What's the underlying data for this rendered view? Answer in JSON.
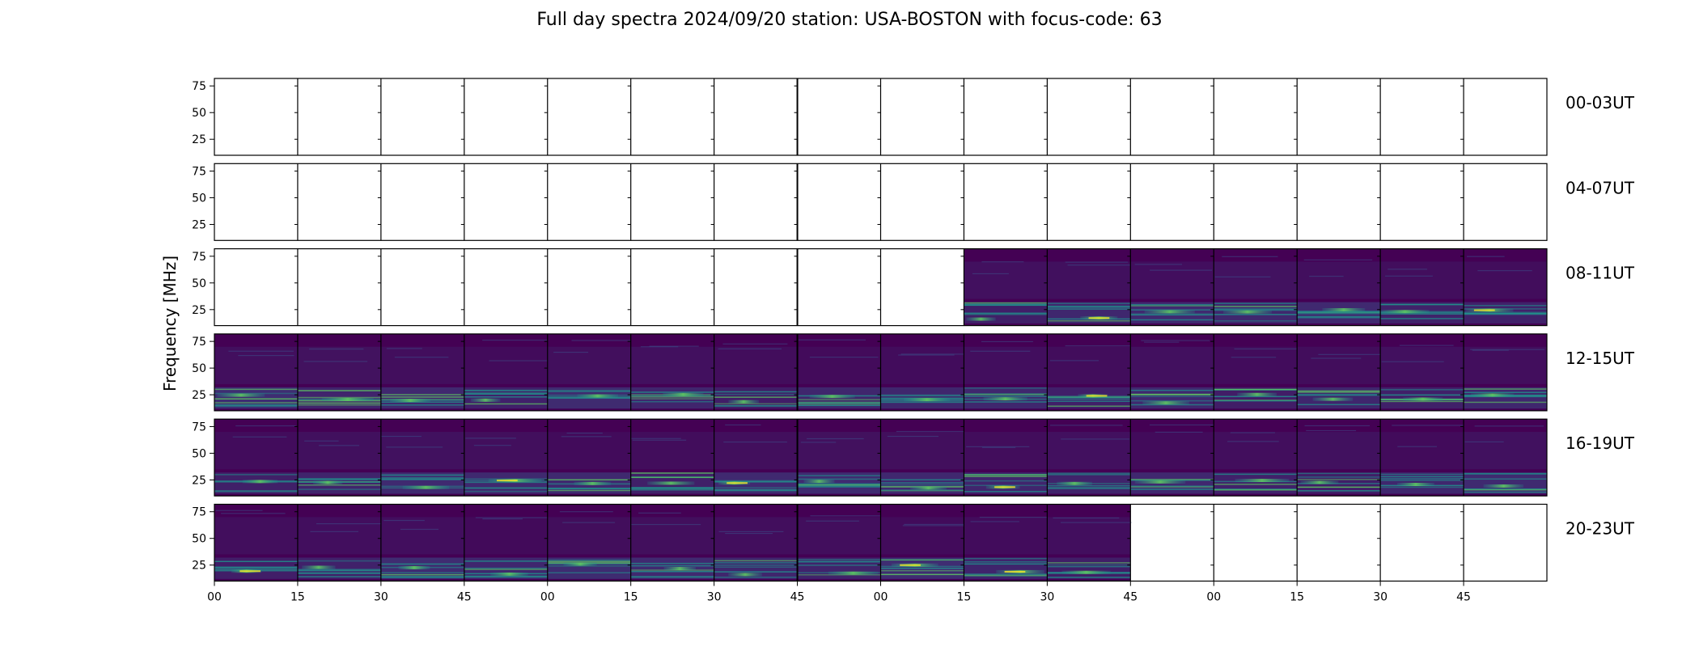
{
  "chart_data": {
    "type": "heatmap",
    "title": "Full day spectra 2024/09/20 station: USA-BOSTON with focus-code: 63",
    "ylabel": "Frequency [MHz]",
    "ylim": [
      10,
      82
    ],
    "yticks": [
      25,
      50,
      75
    ],
    "xticks": [
      "00",
      "15",
      "30",
      "45",
      "00",
      "15",
      "30",
      "45",
      "00",
      "15",
      "30",
      "45",
      "00",
      "15",
      "30",
      "45"
    ],
    "colormap": [
      "#440154",
      "#3b528b",
      "#21918c",
      "#5ec962",
      "#fde725"
    ],
    "rows": [
      {
        "label": "00-03UT",
        "filled": [
          0,
          0,
          0,
          0,
          0,
          0,
          0,
          0,
          0,
          0,
          0,
          0,
          0,
          0,
          0,
          0
        ]
      },
      {
        "label": "04-07UT",
        "filled": [
          0,
          0,
          0,
          0,
          0,
          0,
          0,
          0,
          0,
          0,
          0,
          0,
          0,
          0,
          0,
          0
        ]
      },
      {
        "label": "08-11UT",
        "filled": [
          0,
          0,
          0,
          0,
          0,
          0,
          0,
          0,
          0,
          1,
          1,
          1,
          1,
          1,
          1,
          1
        ]
      },
      {
        "label": "12-15UT",
        "filled": [
          1,
          1,
          1,
          1,
          1,
          1,
          1,
          1,
          1,
          1,
          1,
          1,
          1,
          1,
          1,
          1
        ]
      },
      {
        "label": "16-19UT",
        "filled": [
          1,
          1,
          1,
          1,
          1,
          1,
          1,
          1,
          1,
          1,
          1,
          1,
          1,
          1,
          1,
          1
        ]
      },
      {
        "label": "20-23UT",
        "filled": [
          1,
          1,
          1,
          1,
          1,
          1,
          1,
          1,
          1,
          1,
          1,
          0,
          0,
          0,
          0,
          0
        ]
      }
    ]
  }
}
